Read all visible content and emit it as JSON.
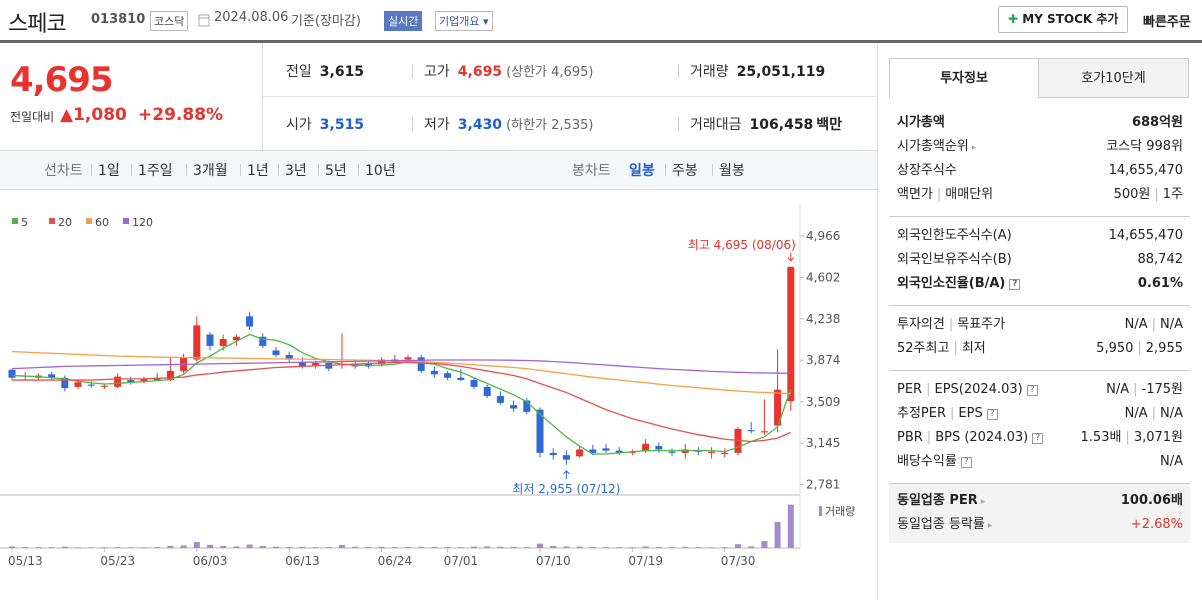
{
  "header": {
    "name": "스페코",
    "code": "013810",
    "market": "코스닥",
    "date": "2024.08.06",
    "basis": "기준(장마감)",
    "realtime": "실시간",
    "overview": "기업개요",
    "mystock": "MY STOCK 추가",
    "quick_order": "빠른주문"
  },
  "price": {
    "current": "4,695",
    "change_label": "전일대비",
    "change": "1,080",
    "change_rate": "+29.88%"
  },
  "summary": [
    {
      "label": "전일",
      "value": "3,615"
    },
    {
      "label": "고가",
      "value": "4,695",
      "note": "(상한가 4,695)",
      "color": "#e8332f"
    },
    {
      "label": "거래량",
      "value": "25,051,119"
    },
    {
      "label": "시가",
      "value": "3,515",
      "color": "#1f5fd0"
    },
    {
      "label": "저가",
      "value": "3,430",
      "note": "(하한가 2,535)",
      "color": "#1f5fd0"
    },
    {
      "label": "거래대금",
      "value": "106,458",
      "unit": "백만"
    }
  ],
  "chart_tabs": {
    "line_label": "선차트",
    "line_periods": [
      "1일",
      "1주일",
      "3개월",
      "1년",
      "3년",
      "5년",
      "10년"
    ],
    "candle_label": "봉차트",
    "candle_periods": [
      "일봉",
      "주봉",
      "월봉"
    ],
    "active": "일봉"
  },
  "chart_data": {
    "type": "candlestick",
    "categories": [
      "05/13",
      null,
      null,
      null,
      null,
      null,
      null,
      "05/23",
      null,
      null,
      null,
      null,
      null,
      null,
      "06/03",
      null,
      null,
      null,
      null,
      null,
      null,
      "06/13",
      null,
      null,
      null,
      null,
      null,
      null,
      "06/24",
      null,
      null,
      null,
      null,
      "07/01",
      null,
      null,
      null,
      null,
      null,
      null,
      "07/10",
      null,
      null,
      null,
      null,
      null,
      null,
      "07/19",
      null,
      null,
      null,
      null,
      null,
      null,
      "07/30",
      null,
      null,
      null,
      null,
      null
    ],
    "open": [
      3790,
      3730,
      3720,
      3750,
      3720,
      3640,
      3660,
      3640,
      3640,
      3700,
      3690,
      3710,
      3700,
      3780,
      3880,
      4100,
      4000,
      4050,
      4260,
      4080,
      3960,
      3920,
      3860,
      3830,
      3850,
      3830,
      3840,
      3850,
      3840,
      3880,
      3880,
      3900,
      3780,
      3760,
      3720,
      3700,
      3640,
      3560,
      3480,
      3520,
      3440,
      3060,
      3040,
      3030,
      3090,
      3100,
      3080,
      3060,
      3080,
      3120,
      3070,
      3060,
      3080,
      3060,
      3050,
      3060,
      3260,
      3240,
      3300,
      3515
    ],
    "high": [
      3800,
      3770,
      3760,
      3770,
      3740,
      3700,
      3690,
      3670,
      3760,
      3730,
      3730,
      3760,
      3900,
      3930,
      4260,
      4120,
      4100,
      4100,
      4300,
      4110,
      3990,
      3950,
      3900,
      3870,
      3870,
      4110,
      3880,
      3880,
      3900,
      3920,
      3920,
      3920,
      3820,
      3780,
      3800,
      3720,
      3660,
      3600,
      3520,
      3540,
      3460,
      3100,
      3080,
      3120,
      3130,
      3140,
      3110,
      3090,
      3180,
      3150,
      3100,
      3140,
      3110,
      3110,
      3100,
      3290,
      3330,
      3530,
      3970,
      4695
    ],
    "low": [
      3700,
      3700,
      3700,
      3700,
      3600,
      3620,
      3630,
      3620,
      3630,
      3660,
      3670,
      3690,
      3690,
      3760,
      3860,
      3960,
      3960,
      4000,
      4140,
      3980,
      3900,
      3860,
      3800,
      3800,
      3780,
      3800,
      3800,
      3800,
      3820,
      3840,
      3850,
      3760,
      3720,
      3700,
      3690,
      3620,
      3540,
      3480,
      3420,
      3400,
      3020,
      3000,
      2955,
      3020,
      3040,
      3060,
      3040,
      3040,
      3060,
      3060,
      3030,
      3010,
      3040,
      3010,
      3020,
      3040,
      3230,
      3220,
      3240,
      3430
    ],
    "close": [
      3720,
      3740,
      3740,
      3720,
      3630,
      3680,
      3650,
      3650,
      3730,
      3680,
      3710,
      3700,
      3780,
      3900,
      4180,
      4000,
      4060,
      4080,
      4170,
      4000,
      3920,
      3880,
      3820,
      3850,
      3800,
      3840,
      3820,
      3820,
      3880,
      3860,
      3900,
      3780,
      3750,
      3720,
      3700,
      3640,
      3560,
      3500,
      3450,
      3420,
      3060,
      3040,
      3000,
      3090,
      3060,
      3080,
      3060,
      3070,
      3140,
      3090,
      3060,
      3090,
      3070,
      3070,
      3060,
      3270,
      3250,
      3250,
      3615,
      4695
    ],
    "up_color": "#e8332f",
    "down_color": "#2e6ad6",
    "series": [
      {
        "name": "5",
        "color": "#4cb648",
        "values": [
          3740,
          3735,
          3730,
          3720,
          3710,
          3690,
          3675,
          3665,
          3670,
          3680,
          3685,
          3695,
          3705,
          3750,
          3850,
          3910,
          3980,
          4040,
          4100,
          4060,
          4050,
          4010,
          3940,
          3890,
          3860,
          3840,
          3830,
          3830,
          3830,
          3840,
          3860,
          3850,
          3840,
          3800,
          3770,
          3720,
          3670,
          3620,
          3570,
          3510,
          3400,
          3300,
          3200,
          3120,
          3050,
          3050,
          3060,
          3070,
          3080,
          3080,
          3080,
          3080,
          3080,
          3080,
          3070,
          3110,
          3160,
          3200,
          3290,
          3620
        ]
      },
      {
        "name": "20",
        "color": "#e8504a",
        "values": [
          3700,
          3700,
          3700,
          3700,
          3700,
          3700,
          3700,
          3705,
          3710,
          3710,
          3710,
          3715,
          3720,
          3725,
          3745,
          3755,
          3770,
          3780,
          3790,
          3800,
          3810,
          3815,
          3820,
          3825,
          3830,
          3835,
          3840,
          3845,
          3850,
          3855,
          3855,
          3850,
          3845,
          3835,
          3820,
          3800,
          3780,
          3760,
          3740,
          3710,
          3670,
          3630,
          3590,
          3540,
          3490,
          3440,
          3400,
          3360,
          3330,
          3300,
          3270,
          3245,
          3220,
          3200,
          3180,
          3170,
          3160,
          3170,
          3190,
          3240
        ]
      },
      {
        "name": "60",
        "color": "#f5a04a",
        "values": [
          3950,
          3945,
          3940,
          3935,
          3930,
          3925,
          3920,
          3915,
          3910,
          3908,
          3905,
          3902,
          3900,
          3898,
          3896,
          3895,
          3893,
          3892,
          3890,
          3888,
          3886,
          3885,
          3884,
          3882,
          3880,
          3878,
          3876,
          3874,
          3872,
          3870,
          3866,
          3862,
          3856,
          3850,
          3842,
          3834,
          3826,
          3818,
          3810,
          3800,
          3785,
          3770,
          3755,
          3740,
          3725,
          3712,
          3700,
          3688,
          3676,
          3664,
          3652,
          3642,
          3632,
          3622,
          3612,
          3604,
          3596,
          3590,
          3585,
          3582
        ]
      },
      {
        "name": "120",
        "color": "#a064d6",
        "values": [
          3800,
          3805,
          3810,
          3815,
          3820,
          3822,
          3824,
          3826,
          3828,
          3830,
          3832,
          3834,
          3836,
          3838,
          3840,
          3842,
          3844,
          3846,
          3848,
          3850,
          3852,
          3854,
          3856,
          3858,
          3860,
          3862,
          3864,
          3866,
          3868,
          3870,
          3872,
          3874,
          3876,
          3876,
          3876,
          3876,
          3876,
          3875,
          3874,
          3872,
          3868,
          3862,
          3856,
          3848,
          3840,
          3832,
          3824,
          3816,
          3808,
          3800,
          3794,
          3788,
          3782,
          3776,
          3772,
          3768,
          3764,
          3762,
          3760,
          3760
        ]
      }
    ],
    "ylim": [
      2690,
      5150
    ],
    "yticks": [
      {
        "value": 4966,
        "label": "4,966"
      },
      {
        "value": 4602,
        "label": "4,602"
      },
      {
        "value": 4238,
        "label": "4,238"
      },
      {
        "value": 3874,
        "label": "3,874"
      },
      {
        "value": 3509,
        "label": "3,509"
      },
      {
        "value": 3145,
        "label": "3,145"
      },
      {
        "value": 2781,
        "label": "2,781"
      }
    ],
    "annotations": [
      {
        "text": "최고 4,695 (08/06)",
        "value": 4695,
        "color": "#e8332f"
      },
      {
        "text": "최저 2,955 (07/12)",
        "value": 2955,
        "color": "#2e6ad6"
      }
    ],
    "volume": {
      "label": "거래량",
      "color": "#a48bd0",
      "ylim": [
        0,
        26000000
      ],
      "values": [
        900000,
        600000,
        500000,
        500000,
        800000,
        400000,
        400000,
        400000,
        500000,
        400000,
        400000,
        500000,
        1200000,
        1500000,
        3500000,
        1800000,
        1200000,
        900000,
        2000000,
        1200000,
        800000,
        600000,
        600000,
        500000,
        500000,
        1800000,
        700000,
        600000,
        700000,
        500000,
        600000,
        700000,
        600000,
        500000,
        500000,
        800000,
        900000,
        700000,
        600000,
        500000,
        2500000,
        1200000,
        900000,
        800000,
        600000,
        500000,
        500000,
        400000,
        900000,
        600000,
        500000,
        700000,
        500000,
        400000,
        500000,
        2200000,
        900000,
        4000000,
        15000000,
        25051119
      ]
    }
  },
  "invest_info": {
    "tabs": [
      "투자정보",
      "호가10단계"
    ],
    "groups": [
      [
        {
          "label": [
            "시가총액"
          ],
          "value": [
            "688억원"
          ],
          "bold": true
        },
        {
          "label": [
            "시가총액순위"
          ],
          "value": [
            "코스닥 998위"
          ],
          "arrow": true
        },
        {
          "label": [
            "상장주식수"
          ],
          "value": [
            "14,655,470"
          ]
        },
        {
          "label": [
            "액면가",
            "매매단위"
          ],
          "value": [
            "500원",
            "1주"
          ]
        }
      ],
      [
        {
          "label": [
            "외국인한도주식수(A)"
          ],
          "value": [
            "14,655,470"
          ]
        },
        {
          "label": [
            "외국인보유주식수(B)"
          ],
          "value": [
            "88,742"
          ]
        },
        {
          "label": [
            "외국인소진율(B/A)"
          ],
          "value": [
            "0.61%"
          ],
          "bold": true,
          "help": true
        }
      ],
      [
        {
          "label": [
            "투자의견",
            "목표주가"
          ],
          "value": [
            "N/A",
            "N/A"
          ]
        },
        {
          "label": [
            "52주최고",
            "최저"
          ],
          "value": [
            "5,950",
            "2,955"
          ]
        }
      ],
      [
        {
          "label": [
            "PER",
            "EPS(2024.03)"
          ],
          "value": [
            "N/A",
            "-175원"
          ],
          "help": true
        },
        {
          "label": [
            "추정PER",
            "EPS"
          ],
          "value": [
            "N/A",
            "N/A"
          ],
          "help": true
        },
        {
          "label": [
            "PBR",
            "BPS (2024.03)"
          ],
          "value": [
            "1.53배",
            "3,071원"
          ],
          "help": true
        },
        {
          "label": [
            "배당수익률"
          ],
          "value": [
            "N/A"
          ],
          "help": true
        }
      ],
      [
        {
          "label": [
            "동일업종 PER"
          ],
          "value": [
            "100.06배"
          ],
          "bold": true,
          "arrow": true
        },
        {
          "label": [
            "동일업종 등락률"
          ],
          "value": [
            "+2.68%"
          ],
          "arrow": true,
          "color": "#e8332f"
        }
      ]
    ]
  }
}
